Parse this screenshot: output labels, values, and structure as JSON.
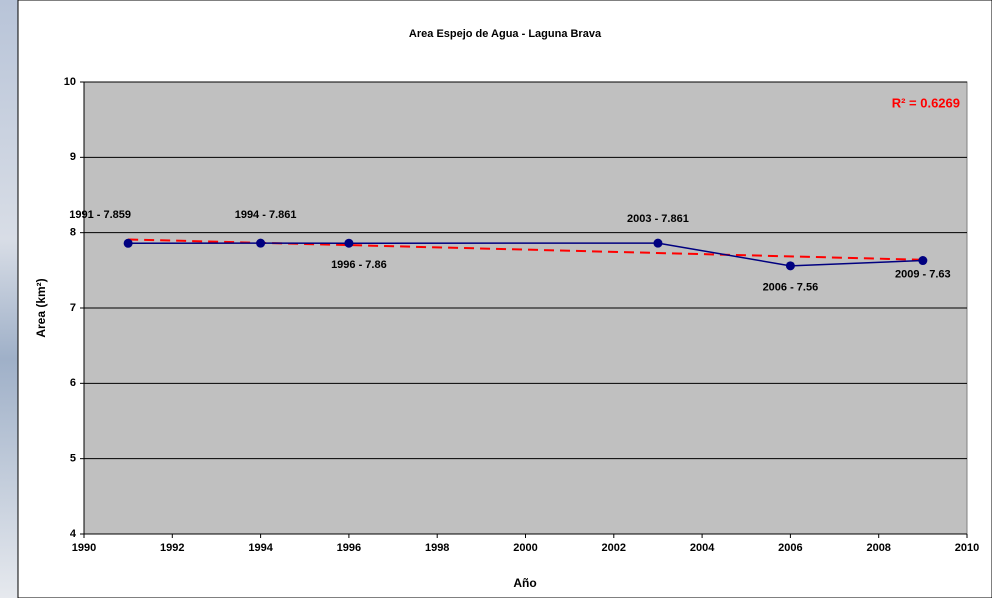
{
  "chart_data": {
    "type": "line",
    "title": "Area Espejo de Agua - Laguna Brava",
    "x_label": "Año",
    "y_label": "Area (km²)",
    "annotation": "R² = 0.6269",
    "x": [
      1991,
      1994,
      1996,
      2003,
      2006,
      2009
    ],
    "series": [
      {
        "color": "#000080",
        "values": [
          7.859,
          7.861,
          7.86,
          7.861,
          7.56,
          7.63
        ],
        "value_labels": [
          "1991 - 7.859",
          "1994 - 7.861",
          "1996 - 7.86",
          "2003 - 7.861",
          "2006 - 7.56",
          "2009 - 7.63"
        ]
      }
    ],
    "trendline": {
      "color": "#ff0000",
      "x": [
        1991,
        2009
      ],
      "values": [
        7.91,
        7.64
      ]
    },
    "xlim": [
      1990,
      2010
    ],
    "xticks": [
      1990,
      1992,
      1994,
      1996,
      1998,
      2000,
      2002,
      2004,
      2006,
      2008,
      2010
    ],
    "ylim": [
      4,
      10
    ],
    "yticks": [
      4,
      5,
      6,
      7,
      8,
      9,
      10
    ],
    "grid": true
  }
}
